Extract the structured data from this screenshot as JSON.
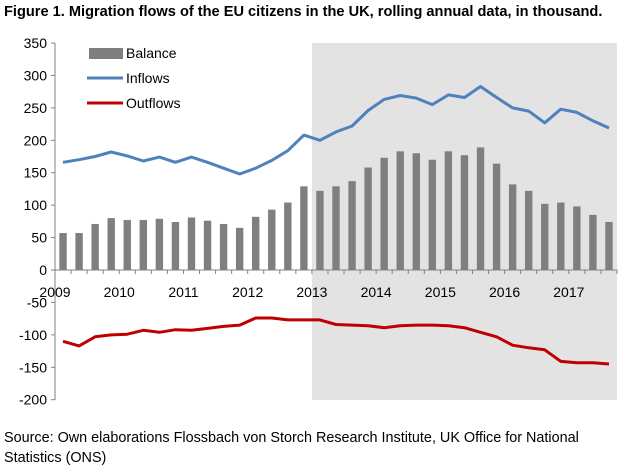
{
  "title": "Figure 1. Migration flows of the EU citizens in the UK, rolling annual data, in thousand.",
  "source": "Source: Own elaborations Flossbach von Storch Research Institute, UK Office for National Statistics (ONS)",
  "colors": {
    "balance": "#7f7f7f",
    "inflows": "#4f81bd",
    "outflows": "#c00000",
    "shade": "#e3e3e3"
  },
  "chart_data": {
    "type": "bar+line",
    "x_labels": [
      "2009",
      "2010",
      "2011",
      "2012",
      "2013",
      "2014",
      "2015",
      "2016",
      "2017"
    ],
    "ylim": [
      -200,
      350
    ],
    "yticks": [
      -200,
      -150,
      -100,
      -50,
      0,
      50,
      100,
      150,
      200,
      250,
      300,
      350
    ],
    "grid": false,
    "legend": "top-left",
    "shaded_region_start_index": 16,
    "series": [
      {
        "name": "Balance",
        "kind": "bar",
        "values": [
          57,
          57,
          71,
          80,
          77,
          77,
          79,
          74,
          81,
          76,
          71,
          65,
          82,
          93,
          104,
          129,
          122,
          129,
          137,
          158,
          173,
          183,
          180,
          170,
          183,
          177,
          189,
          164,
          132,
          122,
          102,
          104,
          98,
          85,
          74
        ]
      },
      {
        "name": "Inflows",
        "kind": "line",
        "values": [
          166,
          170,
          175,
          182,
          176,
          168,
          174,
          166,
          174,
          166,
          157,
          148,
          157,
          169,
          184,
          208,
          200,
          213,
          222,
          246,
          263,
          269,
          265,
          255,
          270,
          266,
          283,
          266,
          250,
          245,
          227,
          248,
          243,
          230,
          219
        ]
      },
      {
        "name": "Outflows",
        "kind": "line",
        "values": [
          -110,
          -117,
          -103,
          -100,
          -99,
          -93,
          -96,
          -92,
          -93,
          -90,
          -87,
          -85,
          -74,
          -74,
          -77,
          -77,
          -77,
          -84,
          -85,
          -86,
          -89,
          -86,
          -85,
          -85,
          -86,
          -89,
          -96,
          -103,
          -116,
          -120,
          -123,
          -141,
          -143,
          -143,
          -145
        ]
      }
    ]
  }
}
